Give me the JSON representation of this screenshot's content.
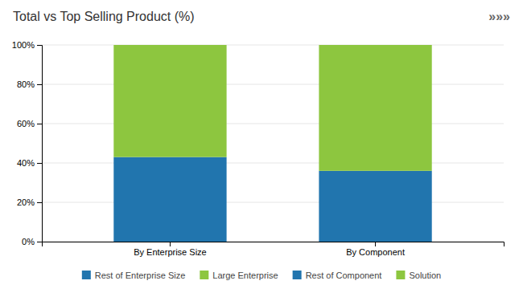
{
  "chart_data": {
    "type": "bar",
    "title": "Total vs Top Selling Product (%)",
    "annotations": [
      "»»»"
    ],
    "categories": [
      "By Enterprise Size",
      "By Component"
    ],
    "series": [
      {
        "name": "Rest of Enterprise Size",
        "color": "#2175AE",
        "values": [
          43,
          null
        ]
      },
      {
        "name": "Large Enterprise",
        "color": "#8DC63F",
        "values": [
          57,
          null
        ]
      },
      {
        "name": "Rest of Component",
        "color": "#2175AE",
        "values": [
          null,
          36
        ]
      },
      {
        "name": "Solution",
        "color": "#8DC63F",
        "values": [
          null,
          64
        ]
      }
    ],
    "stacked": true,
    "ylim": [
      0,
      100
    ],
    "yticks": [
      {
        "value": 0,
        "label": "0%"
      },
      {
        "value": 20,
        "label": "20%"
      },
      {
        "value": 40,
        "label": "40%"
      },
      {
        "value": 60,
        "label": "60%"
      },
      {
        "value": 80,
        "label": "80%"
      },
      {
        "value": 100,
        "label": "100%"
      }
    ],
    "grid": true,
    "legend": "bottom"
  }
}
